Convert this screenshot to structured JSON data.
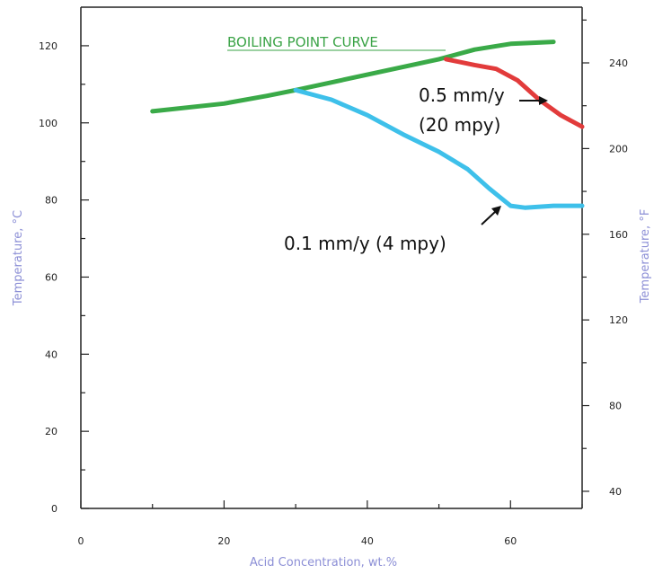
{
  "chart_data": {
    "type": "line",
    "xlabel": "Acid Concentration, wt.%",
    "ylabel_left": "Temperature, °C",
    "ylabel_right": "Temperature, °F",
    "xlim": [
      0,
      70
    ],
    "ylim_left": [
      0,
      130
    ],
    "ylim_right": [
      32,
      266
    ],
    "x_ticks": [
      0,
      20,
      40,
      60
    ],
    "y_ticks_left": [
      0,
      20,
      40,
      60,
      80,
      100,
      120
    ],
    "y_ticks_right": [
      40,
      80,
      120,
      160,
      200,
      240
    ],
    "grid": false,
    "series": [
      {
        "name": "BOILING POINT CURVE",
        "color": "#3aaa48",
        "points": [
          [
            10,
            103
          ],
          [
            20,
            105
          ],
          [
            26,
            107
          ],
          [
            30,
            108.5
          ],
          [
            40,
            112.5
          ],
          [
            50,
            116.5
          ],
          [
            55,
            119
          ],
          [
            60,
            120.5
          ],
          [
            66,
            121
          ]
        ]
      },
      {
        "name": "0.5 mm/y (20 mpy)",
        "color": "#e23b3b",
        "points": [
          [
            51,
            116.5
          ],
          [
            55,
            115
          ],
          [
            58,
            114
          ],
          [
            61,
            111
          ],
          [
            64,
            106
          ],
          [
            67,
            102
          ],
          [
            70,
            99
          ]
        ]
      },
      {
        "name": "0.1 mm/y (4 mpy)",
        "color": "#3ec0ea",
        "points": [
          [
            30,
            108.5
          ],
          [
            35,
            106
          ],
          [
            40,
            102
          ],
          [
            45,
            97
          ],
          [
            50,
            92.5
          ],
          [
            54,
            88
          ],
          [
            57,
            83
          ],
          [
            60,
            78.5
          ],
          [
            62,
            78
          ],
          [
            66,
            78.5
          ],
          [
            70,
            78.5
          ]
        ]
      }
    ],
    "annotations": {
      "boiling": "BOILING POINT CURVE",
      "red_line1": "0.5 mm/y",
      "red_line2": "(20 mpy)",
      "blue": "0.1 mm/y (4 mpy)"
    }
  }
}
